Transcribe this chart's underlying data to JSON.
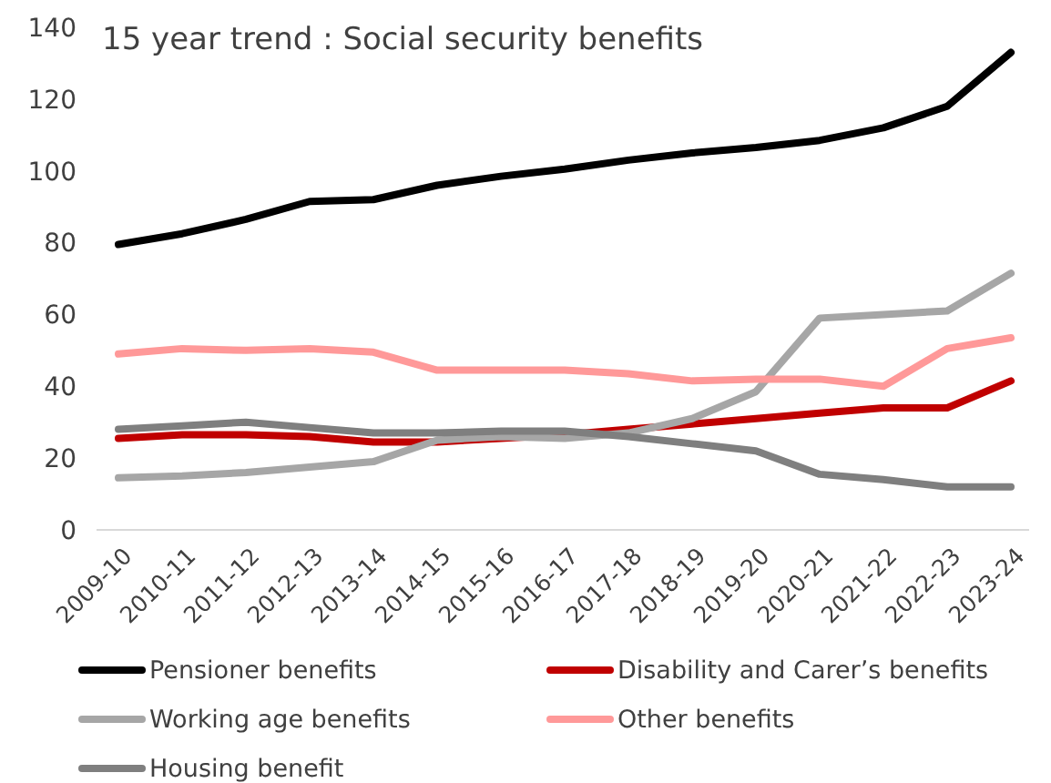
{
  "chart_data": {
    "type": "line",
    "title": "15 year trend : Social security benefits",
    "categories": [
      "2009-10",
      "2010-11",
      "2011-12",
      "2012-13",
      "2013-14",
      "2014-15",
      "2015-16",
      "2016-17",
      "2017-18",
      "2018-19",
      "2019-20",
      "2020-21",
      "2021-22",
      "2022-23",
      "2023-24"
    ],
    "series": [
      {
        "name": "Pensioner benefits",
        "color": "#000000",
        "values": [
          79.5,
          82.5,
          86.5,
          91.5,
          92,
          96,
          98.5,
          100.5,
          103,
          105,
          106.5,
          108.5,
          112,
          118,
          133
        ]
      },
      {
        "name": "Disability and Carer’s benefits",
        "color": "#c00000",
        "values": [
          25.5,
          26.5,
          26.5,
          26,
          24.5,
          24.5,
          25.5,
          26.5,
          28,
          29.5,
          31,
          32.5,
          34,
          34,
          41.5
        ]
      },
      {
        "name": "Working age benefits",
        "color": "#a6a6a6",
        "values": [
          14.5,
          15,
          16,
          17.5,
          19,
          25,
          26,
          25.5,
          27,
          31,
          38.5,
          59,
          60,
          61,
          71.5
        ]
      },
      {
        "name": "Other benefits",
        "color": "#ff9999",
        "values": [
          49,
          50.5,
          50,
          50.5,
          49.5,
          44.5,
          44.5,
          44.5,
          43.5,
          41.5,
          42,
          42,
          40,
          50.5,
          53.5
        ]
      },
      {
        "name": "Housing benefit",
        "color": "#7f7f7f",
        "values": [
          28,
          29,
          30,
          28.5,
          27,
          27,
          27.5,
          27.5,
          26,
          24,
          22,
          15.5,
          14,
          12,
          12
        ]
      }
    ],
    "ylim": [
      0,
      140
    ],
    "yticks": [
      0,
      20,
      40,
      60,
      80,
      100,
      120,
      140
    ],
    "grid": false,
    "legend": "bottom",
    "marker": "none",
    "line_style": "solid"
  }
}
